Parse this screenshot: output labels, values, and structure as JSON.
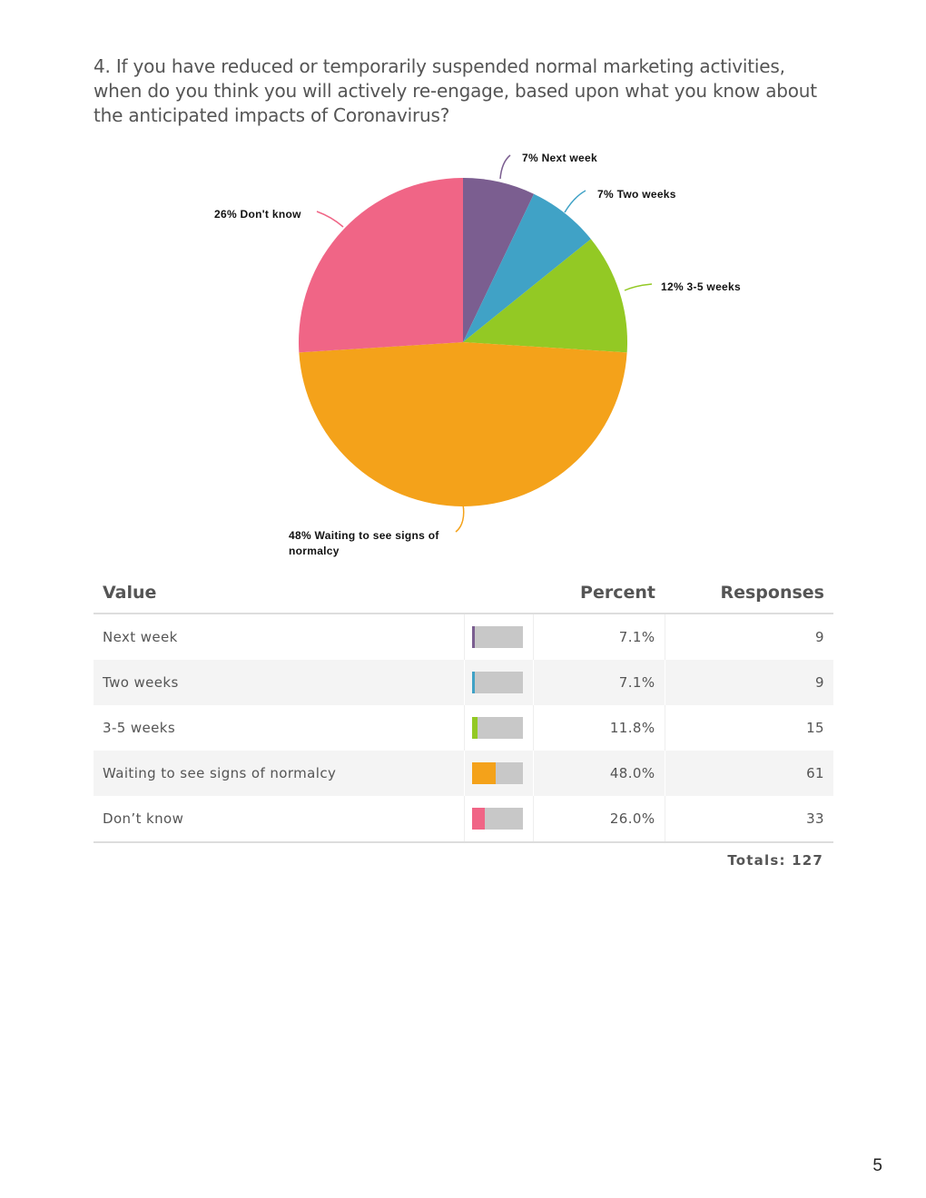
{
  "question": "4. If you have reduced or temporarily suspended normal marketing activities, when do you think you will actively re-engage, based upon what you know about the anticipated impacts of Coronavirus?",
  "chart_data": {
    "type": "pie",
    "slices": [
      {
        "label": "Next week",
        "percent_label": "7%",
        "value": 7.1,
        "color": "#7b5e90"
      },
      {
        "label": "Two weeks",
        "percent_label": "7%",
        "value": 7.1,
        "color": "#40a2c6"
      },
      {
        "label": "3-5 weeks",
        "percent_label": "12%",
        "value": 11.8,
        "color": "#93c924"
      },
      {
        "label": "Waiting to see signs of normalcy",
        "percent_label": "48%",
        "value": 48.0,
        "color": "#f4a21a"
      },
      {
        "label": "Don't know",
        "percent_label": "26%",
        "value": 26.0,
        "color": "#f06586"
      }
    ]
  },
  "pie_labels": {
    "next_week": "7% Next week",
    "two_weeks": "7% Two weeks",
    "three_five": "12% 3-5 weeks",
    "waiting_line1": "48% Waiting to see signs of",
    "waiting_line2": "normalcy",
    "dont_know": "26% Don't know"
  },
  "table": {
    "headers": {
      "value": "Value",
      "percent": "Percent",
      "responses": "Responses"
    },
    "rows": [
      {
        "value": "Next week",
        "percent": "7.1%",
        "fraction": 0.071,
        "responses": "9",
        "color": "#7b5e90"
      },
      {
        "value": "Two weeks",
        "percent": "7.1%",
        "fraction": 0.071,
        "responses": "9",
        "color": "#40a2c6"
      },
      {
        "value": "3-5 weeks",
        "percent": "11.8%",
        "fraction": 0.118,
        "responses": "15",
        "color": "#93c924"
      },
      {
        "value": "Waiting to see signs of normalcy",
        "percent": "48.0%",
        "fraction": 0.48,
        "responses": "61",
        "color": "#f4a21a"
      },
      {
        "value": "Don’t know",
        "percent": "26.0%",
        "fraction": 0.26,
        "responses": "33",
        "color": "#f06586"
      }
    ],
    "totals": "Totals: 127"
  },
  "page_number": "5"
}
